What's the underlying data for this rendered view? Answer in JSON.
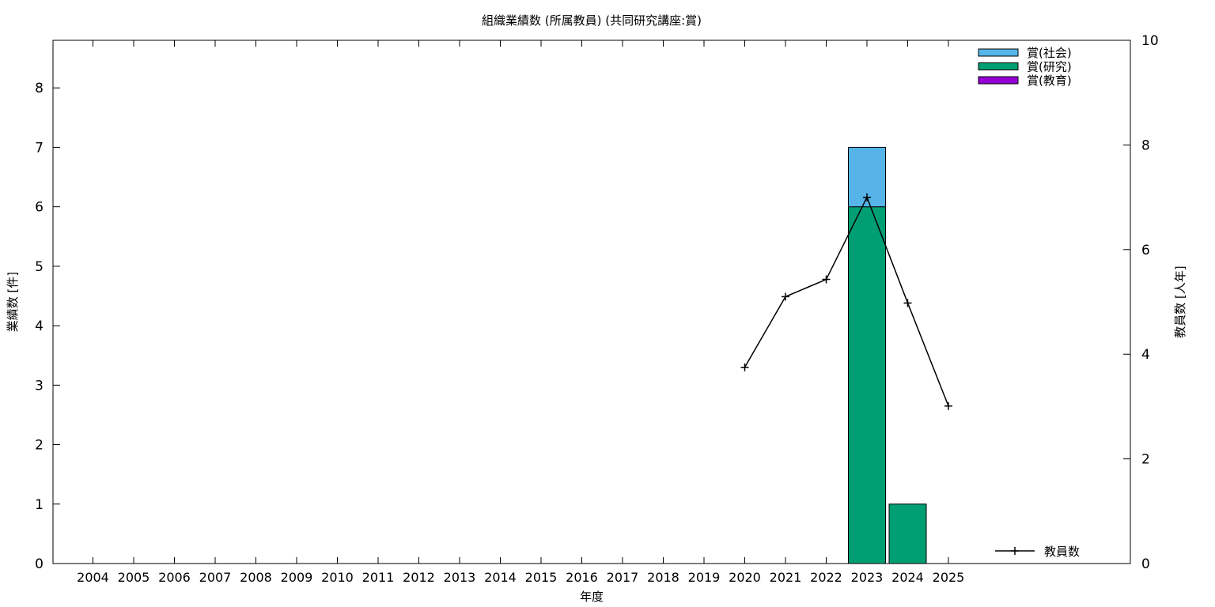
{
  "chart_data": {
    "type": "bar",
    "title": "組織業績数 (所属教員) (共同研究講座:賞)",
    "xlabel": "年度",
    "ylabel": "業績数 [件]",
    "y2label": "教員数 [人年]",
    "categories": [
      "2004",
      "2005",
      "2006",
      "2007",
      "2008",
      "2009",
      "2010",
      "2011",
      "2012",
      "2013",
      "2014",
      "2015",
      "2016",
      "2017",
      "2018",
      "2019",
      "2020",
      "2021",
      "2022",
      "2023",
      "2024",
      "2025"
    ],
    "ylim": [
      0,
      8.8
    ],
    "y2lim": [
      0,
      10
    ],
    "yticks": [
      0,
      1,
      2,
      3,
      4,
      5,
      6,
      7,
      8
    ],
    "y2ticks": [
      0,
      2,
      4,
      6,
      8,
      10
    ],
    "stacked": true,
    "series": [
      {
        "name": "賞(教育)",
        "color": "#9400d3",
        "values": [
          0,
          0,
          0,
          0,
          0,
          0,
          0,
          0,
          0,
          0,
          0,
          0,
          0,
          0,
          0,
          0,
          0,
          0,
          0,
          0,
          0,
          0
        ]
      },
      {
        "name": "賞(研究)",
        "color": "#009e73",
        "values": [
          0,
          0,
          0,
          0,
          0,
          0,
          0,
          0,
          0,
          0,
          0,
          0,
          0,
          0,
          0,
          0,
          0,
          0,
          0,
          6,
          1,
          0
        ]
      },
      {
        "name": "賞(社会)",
        "color": "#56b4e9",
        "values": [
          0,
          0,
          0,
          0,
          0,
          0,
          0,
          0,
          0,
          0,
          0,
          0,
          0,
          0,
          0,
          0,
          0,
          0,
          0,
          1,
          0,
          0
        ]
      }
    ],
    "legend_order": [
      "賞(社会)",
      "賞(研究)",
      "賞(教育)"
    ],
    "legend_position": "top-right",
    "line_series": {
      "name": "教員数",
      "axis": "y2",
      "color": "#000000",
      "x": [
        "2020",
        "2021",
        "2022",
        "2023",
        "2024",
        "2025"
      ],
      "values": [
        3.75,
        5.1,
        5.43,
        7.0,
        4.98,
        3.01
      ]
    },
    "line_legend_position": "bottom-right"
  }
}
